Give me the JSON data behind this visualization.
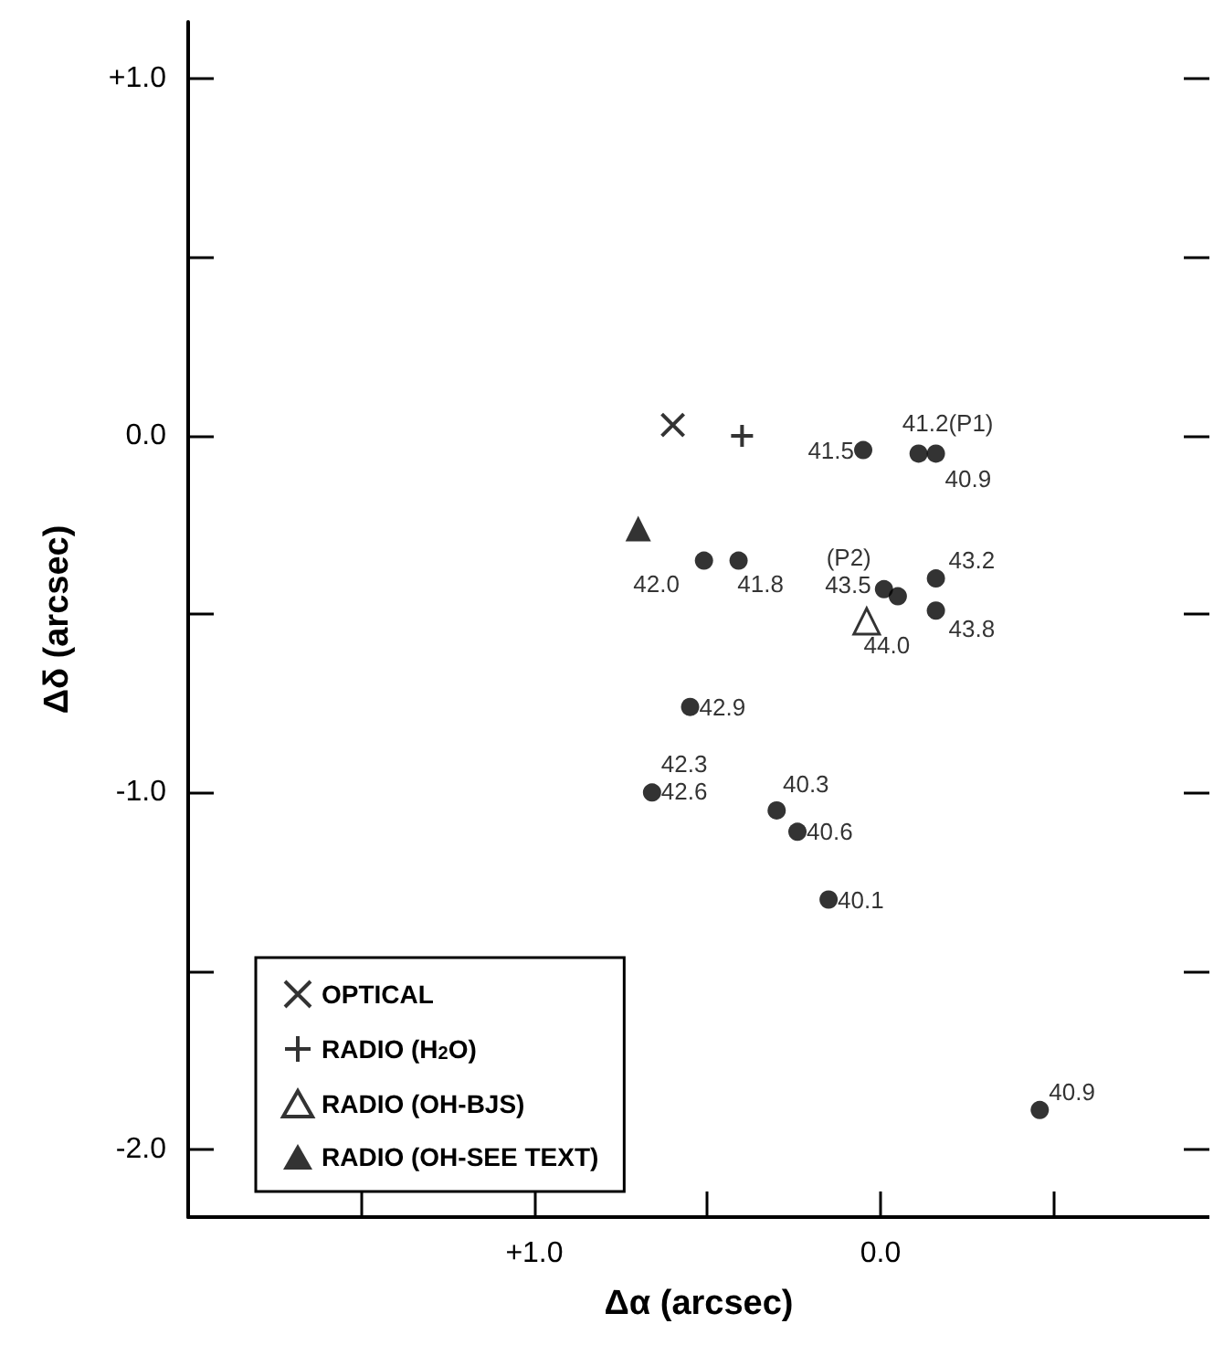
{
  "chart_data": {
    "type": "scatter",
    "xlabel": "Δα (arcsec)",
    "ylabel": "Δδ (arcsec)",
    "xlim": [
      2.0,
      -0.95
    ],
    "ylim": [
      -2.19,
      1.16
    ],
    "xticks": [
      {
        "value": 1.5,
        "label": null
      },
      {
        "value": 1.0,
        "label": "+1.0"
      },
      {
        "value": 0.5,
        "label": null
      },
      {
        "value": 0,
        "label": "0.0"
      },
      {
        "value": -0.5,
        "label": null
      }
    ],
    "yticks": [
      {
        "value": 1.0,
        "label": "+1.0"
      },
      {
        "value": 0.5,
        "label": null
      },
      {
        "value": 0,
        "label": "0.0"
      },
      {
        "value": -0.5,
        "label": null
      },
      {
        "value": -1.0,
        "label": "-1.0"
      },
      {
        "value": -1.5,
        "label": null
      },
      {
        "value": -2.0,
        "label": "-2.0"
      }
    ],
    "grid": false,
    "legend": "bottom left",
    "series": [
      {
        "name": "OPTICAL",
        "color": "#000000",
        "marker": "x",
        "x": [
          0.6
        ],
        "values": [
          0.03
        ]
      },
      {
        "name": "RADIO (H$_{2}$O)",
        "color": "#000000",
        "marker": "cross",
        "x": [
          0.4
        ],
        "values": [
          0.0
        ]
      },
      {
        "name": "RADIO (OH-BJS)",
        "color": "#000000",
        "marker": "triangle-open",
        "x": [
          0.04
        ],
        "values": [
          -0.52
        ]
      },
      {
        "name": "RADIO (OH-SEE TEXT)",
        "color": "#000000",
        "marker": "triangle",
        "x": [
          0.7
        ],
        "values": [
          -0.26
        ]
      },
      {
        "color": "#000000",
        "marker": "circle",
        "x": [
          0.05,
          -0.11,
          -0.16,
          0.51,
          0.41,
          -0.01,
          -0.05,
          -0.16,
          -0.16,
          0.55,
          0.66,
          0.3,
          0.24,
          0.15,
          -0.46
        ],
        "values": [
          -0.04,
          -0.05,
          -0.05,
          -0.35,
          -0.35,
          -0.43,
          -0.45,
          -0.4,
          -0.49,
          -0.76,
          -1.0,
          -1.05,
          -1.11,
          -1.3,
          -1.89
        ]
      }
    ],
    "annotations": [
      {
        "text": "41.5",
        "x": 0.05,
        "y": -0.04
      },
      {
        "text": "41.2(P1)",
        "x": -0.11,
        "y": -0.05
      },
      {
        "text": "40.9",
        "x": -0.16,
        "y": -0.05
      },
      {
        "text": "42.0",
        "x": 0.51,
        "y": -0.35
      },
      {
        "text": "41.8",
        "x": 0.41,
        "y": -0.35
      },
      {
        "text": "(P2)\n43.5",
        "x": -0.01,
        "y": -0.43
      },
      {
        "text": "44.0",
        "x": -0.05,
        "y": -0.45
      },
      {
        "text": "43.2",
        "x": -0.16,
        "y": -0.4
      },
      {
        "text": "43.8",
        "x": -0.16,
        "y": -0.49
      },
      {
        "text": "42.9",
        "x": 0.55,
        "y": -0.76
      },
      {
        "text": "42.3\n42.6",
        "x": 0.66,
        "y": -1.0
      },
      {
        "text": "40.3",
        "x": 0.3,
        "y": -1.05
      },
      {
        "text": "40.6",
        "x": 0.24,
        "y": -1.11
      },
      {
        "text": "40.1",
        "x": 0.15,
        "y": -1.3
      },
      {
        "text": "40.9",
        "x": -0.46,
        "y": -1.89
      }
    ]
  }
}
